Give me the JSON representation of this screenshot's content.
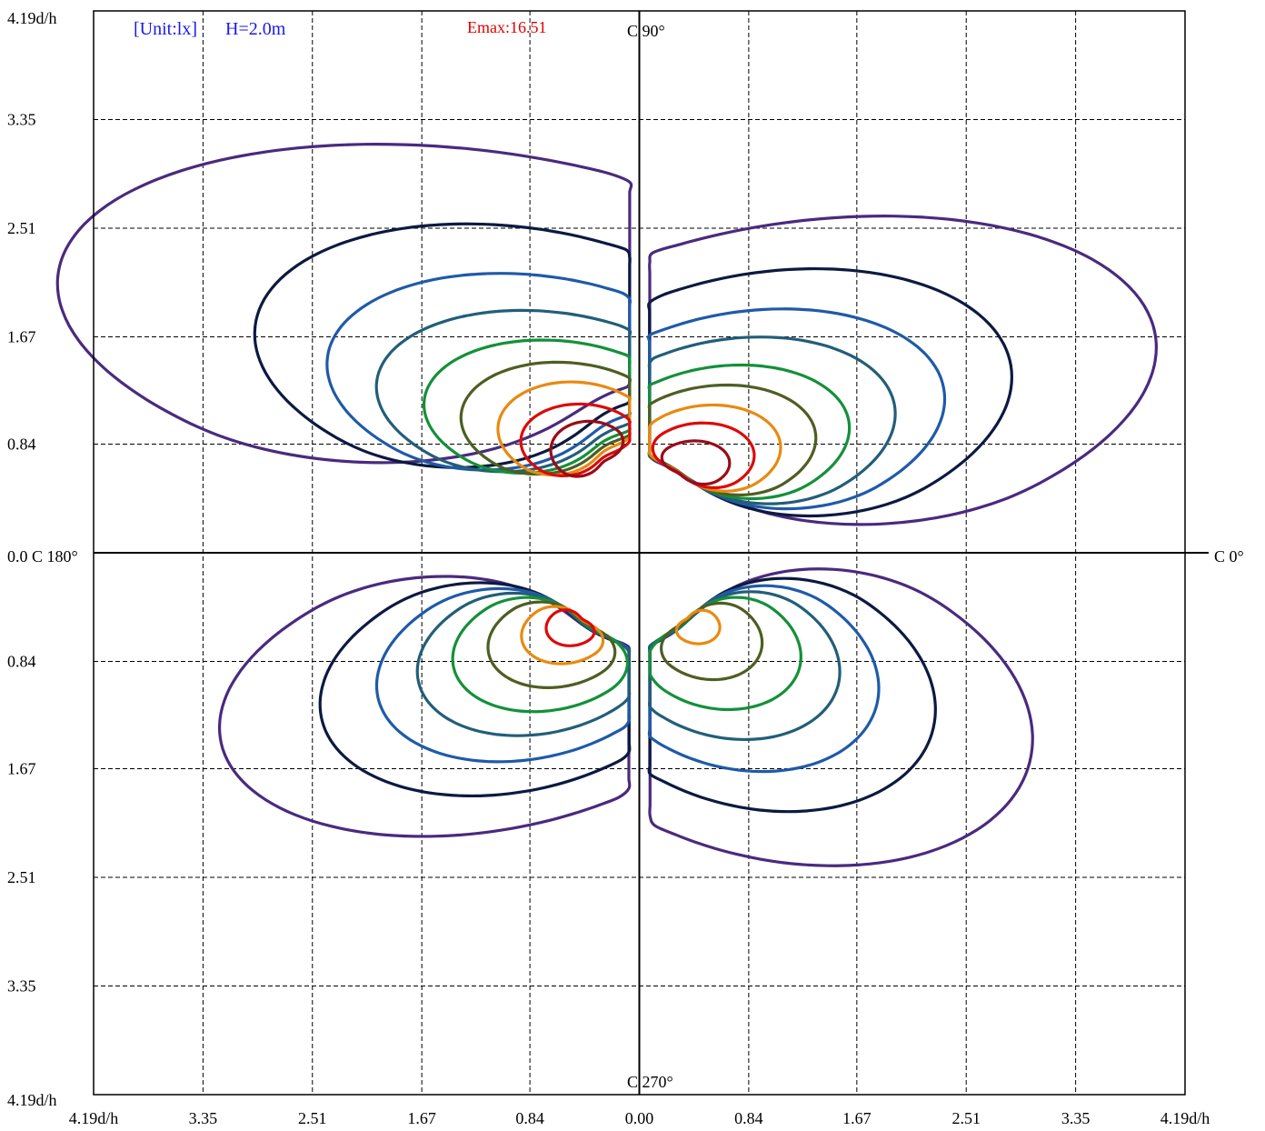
{
  "chart_data": {
    "type": "contour",
    "title": "",
    "unit_label": "[Unit:lx]",
    "height_label": "H=2.0m",
    "emax_label": "Emax:16.51",
    "axis_labels": {
      "c0": "C 0°",
      "c90": "C 90°",
      "c180": "0.0 C 180°",
      "c270": "C 270°"
    },
    "xlim": [
      -4.19,
      4.19
    ],
    "ylim": [
      -4.19,
      4.19
    ],
    "x_tick_labels": [
      "4.19d/h",
      "3.35",
      "2.51",
      "1.67",
      "0.84",
      "0.00",
      "0.84",
      "1.67",
      "2.51",
      "3.35",
      "4.19d/h"
    ],
    "x_tick_values": [
      -4.19,
      -3.35,
      -2.51,
      -1.67,
      -0.84,
      0.0,
      0.84,
      1.67,
      2.51,
      3.35,
      4.19
    ],
    "y_tick_labels": [
      "4.19d/h",
      "3.35",
      "2.51",
      "1.67",
      "0.84",
      "0.84",
      "1.67",
      "2.51",
      "3.35",
      "4.19d/h"
    ],
    "y_tick_values": [
      4.19,
      3.35,
      2.51,
      1.67,
      0.84,
      -0.84,
      -1.67,
      -2.51,
      -3.35,
      -4.19
    ],
    "grid": true,
    "colors": {
      "unit": "#1a1aee",
      "emax": "#e00000",
      "levels": [
        "#4a2a7e",
        "#0c1a40",
        "#1f5aa8",
        "#225e78",
        "#14903a",
        "#4e5e22",
        "#e88a10",
        "#dc0a0a",
        "#9a0c18"
      ]
    },
    "lobes": [
      {
        "name": "upper-left",
        "cx": -0.38,
        "cy": 0.85,
        "ax": 0.52,
        "ay": 0.36,
        "k": [
          [
            0.45,
            0.12,
            0.5,
            3.1,
            1.35
          ],
          [
            0.4,
            0.12,
            0.5,
            1.98,
            1.03
          ],
          [
            0.35,
            0.12,
            0.5,
            1.57,
            0.83
          ],
          [
            0.3,
            0.12,
            0.5,
            1.29,
            0.68
          ],
          [
            0.25,
            0.12,
            0.5,
            1.02,
            0.56
          ],
          [
            0.2,
            0.12,
            0.5,
            0.81,
            0.47
          ],
          [
            0.15,
            0.12,
            0.5,
            0.6,
            0.39
          ],
          [
            0.1,
            0.12,
            0.5,
            0.47,
            0.3
          ],
          [
            0.05,
            0.12,
            0.5,
            0.3,
            0.23
          ]
        ]
      },
      {
        "name": "upper-right",
        "cx": 0.42,
        "cy": 0.75,
        "ax": 0.55,
        "ay": 0.3,
        "k": [
          [
            0.5,
            0.15,
            0.45,
            2.7,
            1.3
          ],
          [
            0.45,
            0.14,
            0.45,
            1.88,
            1.04
          ],
          [
            0.4,
            0.14,
            0.45,
            1.5,
            0.84
          ],
          [
            0.35,
            0.14,
            0.45,
            1.22,
            0.7
          ],
          [
            0.3,
            0.14,
            0.45,
            0.96,
            0.56
          ],
          [
            0.25,
            0.14,
            0.45,
            0.77,
            0.46
          ],
          [
            0.2,
            0.14,
            0.45,
            0.57,
            0.36
          ],
          [
            0.15,
            0.14,
            0.45,
            0.42,
            0.27
          ],
          [
            0.1,
            0.14,
            0.45,
            0.28,
            0.18
          ]
        ]
      },
      {
        "name": "lower-left",
        "cx": -0.55,
        "cy": -0.65,
        "ax": 0.45,
        "ay": 0.42,
        "k": [
          [
            0.55,
            0.15,
            0.48,
            2.05,
            1.1
          ],
          [
            0.5,
            0.14,
            0.48,
            1.48,
            0.9
          ],
          [
            0.45,
            0.14,
            0.48,
            1.16,
            0.73
          ],
          [
            0.4,
            0.14,
            0.48,
            0.93,
            0.6
          ],
          [
            0.35,
            0.14,
            0.48,
            0.73,
            0.48
          ],
          [
            0.3,
            0.14,
            0.48,
            0.53,
            0.36
          ],
          [
            0.25,
            0.14,
            0.48,
            0.34,
            0.24
          ],
          [
            0.2,
            0.14,
            0.48,
            0.2,
            0.15
          ]
        ]
      },
      {
        "name": "lower-right",
        "cx": 0.48,
        "cy": -0.65,
        "ax": 0.4,
        "ay": 0.55,
        "k": [
          [
            0.5,
            0.16,
            0.46,
            1.95,
            1.25
          ],
          [
            0.45,
            0.15,
            0.46,
            1.4,
            0.98
          ],
          [
            0.4,
            0.15,
            0.46,
            1.08,
            0.78
          ],
          [
            0.35,
            0.15,
            0.46,
            0.86,
            0.62
          ],
          [
            0.3,
            0.15,
            0.46,
            0.64,
            0.47
          ],
          [
            0.25,
            0.15,
            0.46,
            0.42,
            0.32
          ],
          [
            0.2,
            0.15,
            0.46,
            0.18,
            0.14
          ]
        ]
      }
    ]
  }
}
